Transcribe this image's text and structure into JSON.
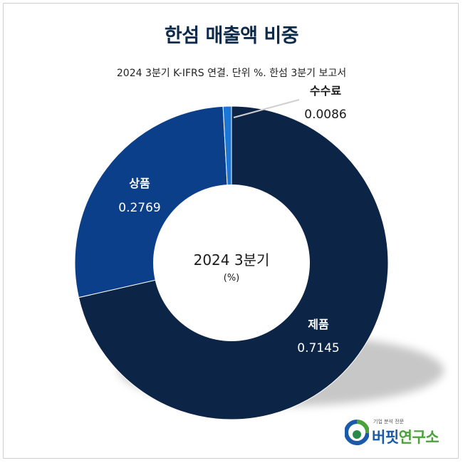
{
  "chart_data": {
    "type": "pie",
    "title": "한섬 매출액 비중",
    "subtitle": "2024 3분기 K-IFRS 연결. 단위 %. 한섬 3분기 보고서",
    "center_label": "2024 3분기",
    "center_unit": "(%)",
    "slices": [
      {
        "label": "제품",
        "value": 0.7145,
        "value_text": "0.7145",
        "color": "#0c2446"
      },
      {
        "label": "상품",
        "value": 0.2769,
        "value_text": "0.2769",
        "color": "#0b3f8a"
      },
      {
        "label": "수수료",
        "value": 0.0086,
        "value_text": "0.0086",
        "color": "#1a77d6"
      }
    ]
  },
  "logo": {
    "tagline": "기업 분석 전문",
    "name_part1": "버핏",
    "name_part2": "연구소"
  }
}
